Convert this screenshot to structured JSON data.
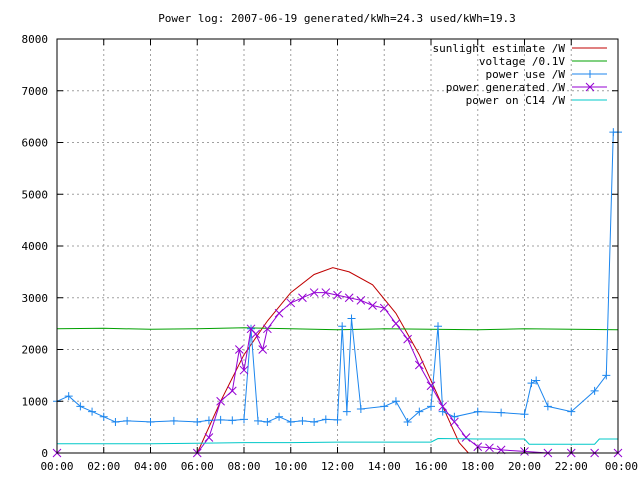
{
  "chart_data": {
    "type": "line",
    "title": "Power log: 2007-06-19 generated/kWh=24.3 used/kWh=19.3",
    "xlabel": "",
    "ylabel": "",
    "x_ticks": [
      "00:00",
      "02:00",
      "04:00",
      "06:00",
      "08:00",
      "10:00",
      "12:00",
      "14:00",
      "16:00",
      "18:00",
      "20:00",
      "22:00",
      "00:00"
    ],
    "y_ticks": [
      "0",
      "1000",
      "2000",
      "3000",
      "4000",
      "5000",
      "6000",
      "7000",
      "8000"
    ],
    "xlim": [
      0,
      24
    ],
    "ylim": [
      0,
      8000
    ],
    "grid": true,
    "legend_position": "top-right",
    "series": [
      {
        "name": "sunlight estimate /W",
        "color": "#c00000",
        "style": "line",
        "x": [
          6.0,
          7.0,
          8.0,
          9.0,
          10.0,
          11.0,
          11.8,
          12.5,
          13.5,
          14.5,
          15.5,
          16.5,
          17.2,
          17.6
        ],
        "y": [
          0,
          1000,
          1900,
          2550,
          3100,
          3450,
          3580,
          3500,
          3250,
          2700,
          1900,
          900,
          200,
          0
        ]
      },
      {
        "name": "voltage /0.1V",
        "color": "#00a000",
        "style": "line",
        "x": [
          0,
          2,
          4,
          6,
          8,
          10,
          12,
          14,
          16,
          18,
          20,
          22,
          24
        ],
        "y": [
          2400,
          2410,
          2390,
          2400,
          2420,
          2400,
          2380,
          2400,
          2390,
          2380,
          2400,
          2390,
          2380
        ]
      },
      {
        "name": "power use /W",
        "color": "#1c86ee",
        "style": "linespoints-plus",
        "x": [
          0,
          0.5,
          1.0,
          1.5,
          2.0,
          2.5,
          3.0,
          4.0,
          5.0,
          6.0,
          6.5,
          7.0,
          7.5,
          8.0,
          8.3,
          8.6,
          9.0,
          9.5,
          10.0,
          10.5,
          11.0,
          11.5,
          12.0,
          12.2,
          12.4,
          12.6,
          13.0,
          14.0,
          14.5,
          15.0,
          15.5,
          16.0,
          16.3,
          16.5,
          17.0,
          18.0,
          19.0,
          20.0,
          20.3,
          20.5,
          21.0,
          22.0,
          23.0,
          23.5,
          23.8,
          24.0
        ],
        "y": [
          1000,
          1100,
          900,
          800,
          700,
          600,
          620,
          600,
          620,
          600,
          630,
          640,
          630,
          650,
          2400,
          620,
          600,
          700,
          600,
          620,
          600,
          650,
          640,
          2450,
          800,
          2600,
          850,
          900,
          1000,
          600,
          800,
          900,
          2450,
          800,
          700,
          800,
          780,
          750,
          1350,
          1400,
          900,
          800,
          1200,
          1500,
          6200,
          6200
        ]
      },
      {
        "name": "power generated /W",
        "color": "#9400d3",
        "style": "linespoints-x",
        "x": [
          0,
          6.0,
          6.5,
          7.0,
          7.5,
          7.8,
          8.0,
          8.3,
          8.5,
          8.8,
          9.0,
          9.5,
          10.0,
          10.5,
          11.0,
          11.5,
          12.0,
          12.5,
          13.0,
          13.5,
          14.0,
          14.5,
          15.0,
          15.5,
          16.0,
          16.5,
          17.0,
          17.5,
          18.0,
          18.5,
          19.0,
          20.0,
          21.0,
          22.0,
          23.0,
          24.0
        ],
        "y": [
          0,
          0,
          300,
          1000,
          1200,
          2000,
          1600,
          2400,
          2300,
          2000,
          2400,
          2700,
          2900,
          3000,
          3100,
          3100,
          3050,
          3000,
          2950,
          2850,
          2800,
          2500,
          2200,
          1700,
          1300,
          900,
          600,
          300,
          120,
          100,
          60,
          30,
          0,
          0,
          0,
          0
        ]
      },
      {
        "name": "power on C14 /W",
        "color": "#00c8c8",
        "style": "line",
        "x": [
          0,
          2,
          4,
          6,
          8,
          10,
          12,
          14,
          16,
          16.3,
          18,
          20,
          20.2,
          22,
          23,
          23.2,
          24
        ],
        "y": [
          180,
          180,
          180,
          190,
          200,
          200,
          210,
          210,
          210,
          280,
          270,
          270,
          170,
          170,
          170,
          270,
          270
        ]
      }
    ]
  }
}
